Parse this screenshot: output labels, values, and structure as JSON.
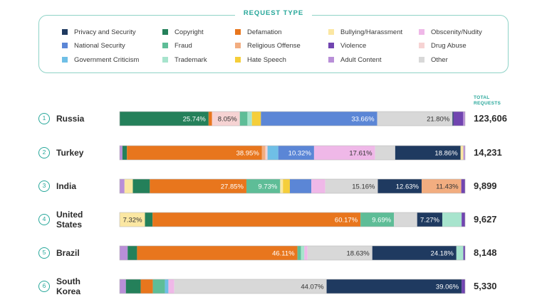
{
  "legend_title": "REQUEST TYPE",
  "total_header": [
    "TOTAL",
    "REQUESTS"
  ],
  "categories": [
    {
      "name": "Privacy and Security",
      "color": "#1f3a60"
    },
    {
      "name": "National Security",
      "color": "#5b86d6"
    },
    {
      "name": "Government Criticism",
      "color": "#6fbfe6"
    },
    {
      "name": "Copyright",
      "color": "#24805a"
    },
    {
      "name": "Fraud",
      "color": "#5ebd97"
    },
    {
      "name": "Trademark",
      "color": "#a7e4cd"
    },
    {
      "name": "Defamation",
      "color": "#e8761d"
    },
    {
      "name": "Religious Offense",
      "color": "#f2ad80"
    },
    {
      "name": "Hate Speech",
      "color": "#f5ce3a"
    },
    {
      "name": "Bullying/Harassment",
      "color": "#fbe7a2"
    },
    {
      "name": "Violence",
      "color": "#7145b0"
    },
    {
      "name": "Adult Content",
      "color": "#b98fd8"
    },
    {
      "name": "Obscenity/Nudity",
      "color": "#efb8e8"
    },
    {
      "name": "Drug Abuse",
      "color": "#f6d3d3"
    },
    {
      "name": "Other",
      "color": "#d8d8d8"
    }
  ],
  "chart_data": {
    "type": "bar",
    "orientation": "horizontal",
    "stacked": true,
    "unit": "percent of requests",
    "rows": [
      {
        "rank": "1",
        "country": "Russia",
        "total": "123,606",
        "segments": [
          {
            "type": "Copyright",
            "value": 25.74,
            "label": "25.74%"
          },
          {
            "type": "Defamation",
            "value": 1.0
          },
          {
            "type": "Drug Abuse",
            "value": 8.05,
            "label": "8.05%"
          },
          {
            "type": "Fraud",
            "value": 2.2
          },
          {
            "type": "Trademark",
            "value": 1.3
          },
          {
            "type": "Hate Speech",
            "value": 2.6
          },
          {
            "type": "National Security",
            "value": 33.66,
            "label": "33.66%"
          },
          {
            "type": "Other",
            "value": 21.8,
            "label": "21.80%"
          },
          {
            "type": "Privacy and Security",
            "value": 0.3
          },
          {
            "type": "Violence",
            "value": 2.8
          },
          {
            "type": "Adult Content",
            "value": 0.55
          }
        ]
      },
      {
        "rank": "2",
        "country": "Turkey",
        "total": "14,231",
        "segments": [
          {
            "type": "Adult Content",
            "value": 0.8
          },
          {
            "type": "Copyright",
            "value": 1.3
          },
          {
            "type": "Defamation",
            "value": 38.95,
            "label": "38.95%"
          },
          {
            "type": "Religious Offense",
            "value": 1.0
          },
          {
            "type": "Drug Abuse",
            "value": 0.6
          },
          {
            "type": "Government Criticism",
            "value": 3.1
          },
          {
            "type": "National Security",
            "value": 10.32,
            "label": "10.32%"
          },
          {
            "type": "Obscenity/Nudity",
            "value": 17.61,
            "label": "17.61%"
          },
          {
            "type": "Other",
            "value": 5.8
          },
          {
            "type": "Privacy and Security",
            "value": 18.86,
            "label": "18.86%"
          },
          {
            "type": "Bullying/Harassment",
            "value": 0.8
          },
          {
            "type": "Adult Content",
            "value": 0.5
          }
        ]
      },
      {
        "rank": "3",
        "country": "India",
        "total": "9,899",
        "segments": [
          {
            "type": "Adult Content",
            "value": 1.4
          },
          {
            "type": "Bullying/Harassment",
            "value": 2.4
          },
          {
            "type": "Copyright",
            "value": 4.9
          },
          {
            "type": "Defamation",
            "value": 27.85,
            "label": "27.85%"
          },
          {
            "type": "Fraud",
            "value": 9.73,
            "label": "9.73%"
          },
          {
            "type": "Bullying/Harassment",
            "value": 0.8
          },
          {
            "type": "Hate Speech",
            "value": 2.0
          },
          {
            "type": "National Security",
            "value": 6.2
          },
          {
            "type": "Obscenity/Nudity",
            "value": 4.0
          },
          {
            "type": "Other",
            "value": 15.16,
            "label": "15.16%"
          },
          {
            "type": "Privacy and Security",
            "value": 12.63,
            "label": "12.63%"
          },
          {
            "type": "Religious Offense",
            "value": 11.43,
            "label": "11.43%"
          },
          {
            "type": "Violence",
            "value": 1.1
          }
        ]
      },
      {
        "rank": "4",
        "country": "United\nStates",
        "total": "9,627",
        "segments": [
          {
            "type": "Bullying/Harassment",
            "value": 7.32,
            "label": "7.32%"
          },
          {
            "type": "Copyright",
            "value": 2.2
          },
          {
            "type": "Defamation",
            "value": 60.17,
            "label": "60.17%"
          },
          {
            "type": "Fraud",
            "value": 9.69,
            "label": "9.69%"
          },
          {
            "type": "Other",
            "value": 6.7
          },
          {
            "type": "Privacy and Security",
            "value": 7.27,
            "label": "7.27%"
          },
          {
            "type": "Trademark",
            "value": 5.6
          },
          {
            "type": "Violence",
            "value": 1.0
          }
        ]
      },
      {
        "rank": "5",
        "country": "Brazil",
        "total": "8,148",
        "segments": [
          {
            "type": "Adult Content",
            "value": 2.3
          },
          {
            "type": "Copyright",
            "value": 2.7
          },
          {
            "type": "Defamation",
            "value": 46.11,
            "label": "46.11%"
          },
          {
            "type": "Fraud",
            "value": 1.0
          },
          {
            "type": "Trademark",
            "value": 1.0
          },
          {
            "type": "Obscenity/Nudity",
            "value": 0.9
          },
          {
            "type": "Other",
            "value": 18.63,
            "label": "18.63%"
          },
          {
            "type": "Privacy and Security",
            "value": 24.18,
            "label": "24.18%"
          },
          {
            "type": "Trademark",
            "value": 2.0
          },
          {
            "type": "Violence",
            "value": 0.5
          }
        ]
      },
      {
        "rank": "6",
        "country": "South\nKorea",
        "total": "5,330",
        "segments": [
          {
            "type": "Adult Content",
            "value": 1.8
          },
          {
            "type": "Copyright",
            "value": 4.3
          },
          {
            "type": "Defamation",
            "value": 3.5
          },
          {
            "type": "Fraud",
            "value": 3.5
          },
          {
            "type": "Government Criticism",
            "value": 1.0
          },
          {
            "type": "Obscenity/Nudity",
            "value": 1.7
          },
          {
            "type": "Other",
            "value": 44.07,
            "label": "44.07%"
          },
          {
            "type": "Privacy and Security",
            "value": 39.06,
            "label": "39.06%"
          },
          {
            "type": "Violence",
            "value": 1.0
          }
        ]
      }
    ]
  }
}
